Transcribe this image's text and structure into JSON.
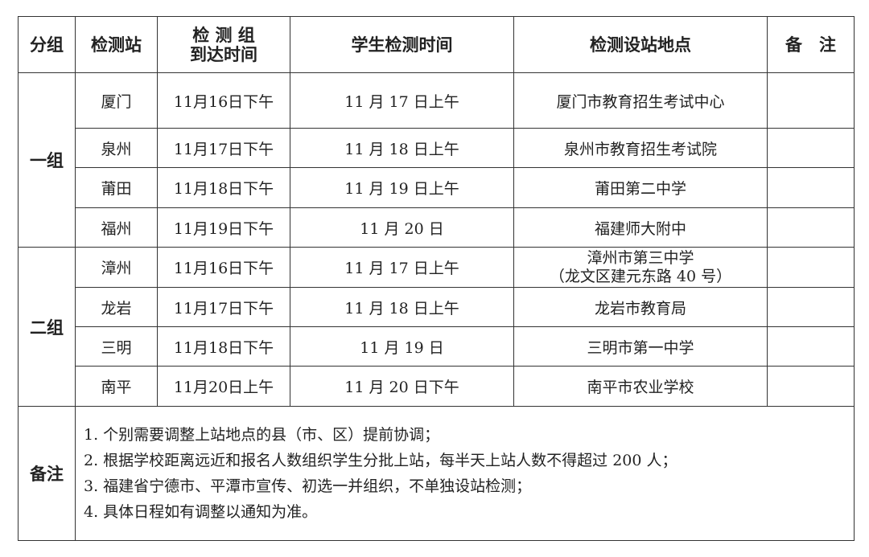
{
  "header": {
    "group": "分组",
    "station": "检测站",
    "arrival_line1": "检 测 组",
    "arrival_line2": "到达时间",
    "student_time": "学生检测时间",
    "location": "检测设站地点",
    "remark": "备　注"
  },
  "groups": [
    {
      "name": "一组",
      "rows": [
        {
          "station": "厦门",
          "arrival": "11月16日下午",
          "student_time": "11 月 17 日上午",
          "location": "厦门市教育招生考试中心",
          "location2": "",
          "remark": ""
        },
        {
          "station": "泉州",
          "arrival": "11月17日下午",
          "student_time": "11 月 18 日上午",
          "location": "泉州市教育招生考试院",
          "location2": "",
          "remark": ""
        },
        {
          "station": "莆田",
          "arrival": "11月18日下午",
          "student_time": "11 月 19 日上午",
          "location": "莆田第二中学",
          "location2": "",
          "remark": ""
        },
        {
          "station": "福州",
          "arrival": "11月19日下午",
          "student_time": "11 月 20 日",
          "location": "福建师大附中",
          "location2": "",
          "remark": ""
        }
      ]
    },
    {
      "name": "二组",
      "rows": [
        {
          "station": "漳州",
          "arrival": "11月16日下午",
          "student_time": "11 月 17 日上午",
          "location": "漳州市第三中学",
          "location2": "（龙文区建元东路 40 号）",
          "remark": ""
        },
        {
          "station": "龙岩",
          "arrival": "11月17日下午",
          "student_time": "11 月 18 日上午",
          "location": "龙岩市教育局",
          "location2": "",
          "remark": ""
        },
        {
          "station": "三明",
          "arrival": "11月18日下午",
          "student_time": "11 月 19 日",
          "location": "三明市第一中学",
          "location2": "",
          "remark": ""
        },
        {
          "station": "南平",
          "arrival": "11月20日上午",
          "student_time": "11 月 20 日下午",
          "location": "南平市农业学校",
          "location2": "",
          "remark": ""
        }
      ]
    }
  ],
  "notes": {
    "label": "备注",
    "items": [
      "1. 个别需要调整上站地点的县（市、区）提前协调；",
      "2. 根据学校距离远近和报名人数组织学生分批上站，每半天上站人数不得超过 200 人；",
      "3. 福建省宁德市、平潭市宣传、初选一并组织，不单独设站检测；",
      "4. 具体日程如有调整以通知为准。"
    ]
  }
}
